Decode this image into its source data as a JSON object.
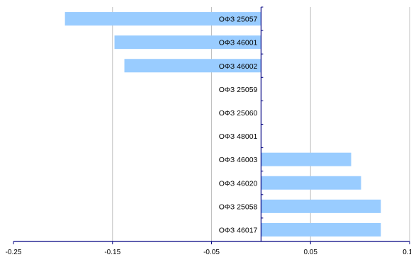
{
  "chart_data": {
    "type": "bar",
    "orientation": "horizontal",
    "categories": [
      "ОФЗ 25057",
      "ОФЗ 46001",
      "ОФЗ 46002",
      "ОФЗ 25059",
      "ОФЗ 25060",
      "ОФЗ 48001",
      "ОФЗ 46003",
      "ОФЗ 46020",
      "ОФЗ 25058",
      "ОФЗ 46017"
    ],
    "values": [
      -0.198,
      -0.148,
      -0.138,
      0.0,
      0.0,
      0.0,
      0.091,
      0.101,
      0.121,
      0.121
    ],
    "xlim": [
      -0.25,
      0.15
    ],
    "xticks": [
      -0.25,
      -0.15,
      -0.05,
      0.05,
      0.15
    ],
    "xtick_labels": [
      "-0.25",
      "-0.15",
      "-0.05",
      "0.05",
      "0.15"
    ],
    "grid": "vertical",
    "title": "",
    "xlabel": "",
    "ylabel": "",
    "colors": {
      "bar": "#99ccff",
      "axis": "#000080",
      "grid": "#c0c0c0"
    }
  }
}
